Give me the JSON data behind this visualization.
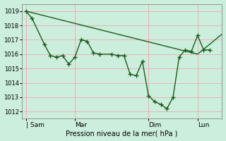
{
  "xlabel": "Pression niveau de la mer( hPa )",
  "bg_color": "#cceedd",
  "line_color": "#1a5c1a",
  "grid_color": "#e8b4b8",
  "xtick_labels": [
    "| Sam",
    "Mar",
    "Dim",
    "Lun"
  ],
  "xtick_positions": [
    0,
    48,
    120,
    168
  ],
  "xlim": [
    -4,
    192
  ],
  "ylim": [
    1011.5,
    1019.5
  ],
  "yticks": [
    1012,
    1013,
    1014,
    1015,
    1016,
    1017,
    1018,
    1019
  ],
  "series1_x": [
    0,
    168,
    192
  ],
  "series1_y": [
    1019.0,
    1016.0,
    1017.4
  ],
  "series2_x": [
    0,
    6,
    18,
    24,
    30,
    36,
    42,
    48,
    54,
    60,
    66,
    72,
    84,
    90,
    96,
    102,
    108,
    114,
    120,
    126,
    132,
    138,
    144,
    150,
    156,
    162,
    168,
    174,
    180
  ],
  "series2_y": [
    1019.0,
    1018.5,
    1016.7,
    1015.9,
    1015.8,
    1015.9,
    1015.3,
    1015.8,
    1017.0,
    1016.9,
    1016.1,
    1016.0,
    1016.0,
    1015.9,
    1015.9,
    1014.6,
    1014.5,
    1015.5,
    1013.1,
    1012.7,
    1012.5,
    1012.2,
    1013.0,
    1015.8,
    1016.3,
    1016.2,
    1017.3,
    1016.3,
    1016.3
  ],
  "figsize": [
    3.2,
    2.0
  ],
  "dpi": 100
}
